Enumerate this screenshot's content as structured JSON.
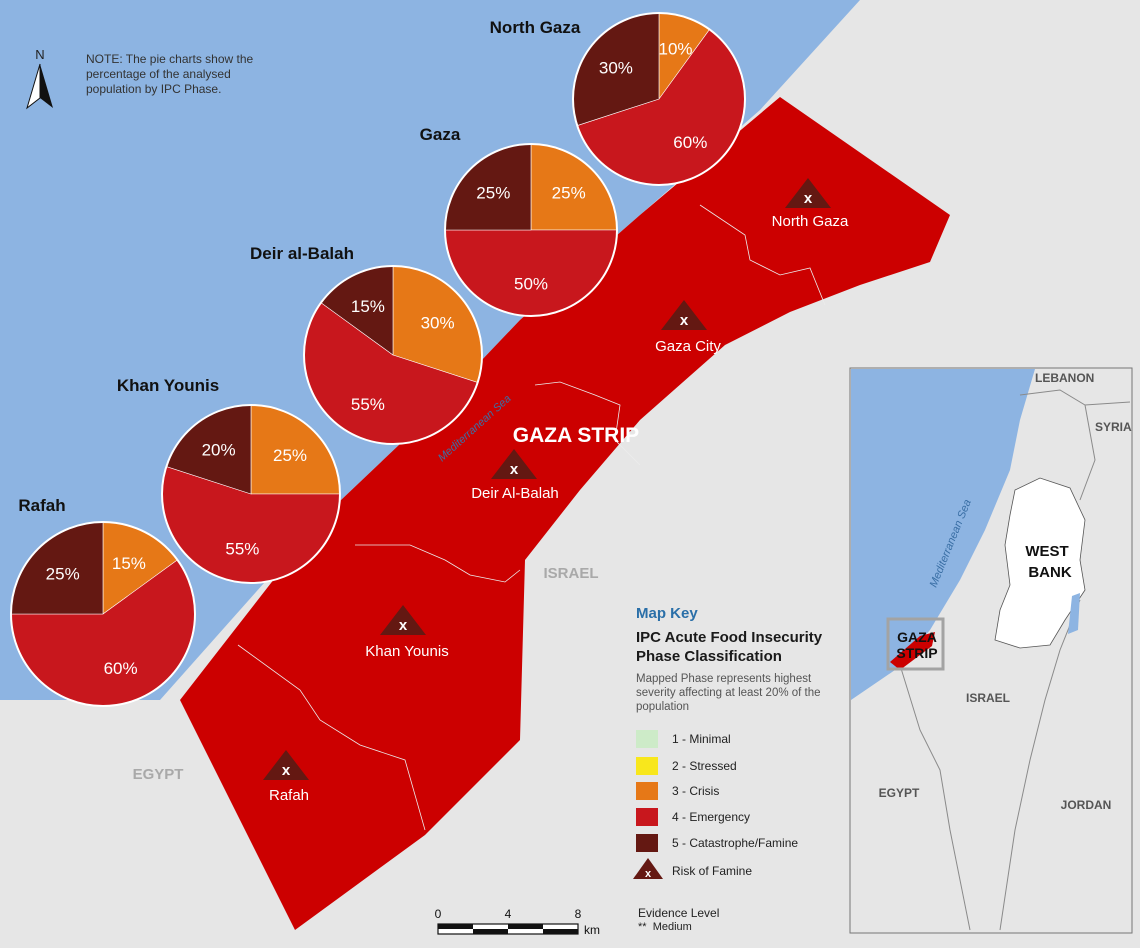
{
  "note": "NOTE: The pie charts show the percentage of the analysed population by IPC Phase.",
  "north_label": "N",
  "colors": {
    "sea": "#8db4e2",
    "land": "#e6e6e6",
    "strip": "#cc0000",
    "minimal": "#cdebc8",
    "stressed": "#f8e71c",
    "crisis": "#e67817",
    "emergency": "#c8171d",
    "catastrophe": "#641812"
  },
  "map_labels": {
    "strip_title": "GAZA STRIP",
    "sea": "Mediterranean Sea",
    "israel": "ISRAEL",
    "egypt": "EGYPT"
  },
  "markers": [
    {
      "label": "North Gaza",
      "symbol": "x"
    },
    {
      "label": "Gaza City",
      "symbol": "x"
    },
    {
      "label": "Deir Al-Balah",
      "symbol": "x"
    },
    {
      "label": "Khan Younis",
      "symbol": "x"
    },
    {
      "label": "Rafah",
      "symbol": "x"
    }
  ],
  "chart_data": [
    {
      "type": "pie",
      "title": "North Gaza",
      "slices": [
        {
          "phase": "3 - Crisis",
          "value": 10,
          "label": "10%"
        },
        {
          "phase": "4 - Emergency",
          "value": 60,
          "label": "60%"
        },
        {
          "phase": "5 - Catastrophe/Famine",
          "value": 30,
          "label": "30%"
        }
      ]
    },
    {
      "type": "pie",
      "title": "Gaza",
      "slices": [
        {
          "phase": "3 - Crisis",
          "value": 25,
          "label": "25%"
        },
        {
          "phase": "4 - Emergency",
          "value": 50,
          "label": "50%"
        },
        {
          "phase": "5 - Catastrophe/Famine",
          "value": 25,
          "label": "25%"
        }
      ]
    },
    {
      "type": "pie",
      "title": "Deir al-Balah",
      "slices": [
        {
          "phase": "3 - Crisis",
          "value": 30,
          "label": "30%"
        },
        {
          "phase": "4 - Emergency",
          "value": 55,
          "label": "55%"
        },
        {
          "phase": "5 - Catastrophe/Famine",
          "value": 15,
          "label": "15%"
        }
      ]
    },
    {
      "type": "pie",
      "title": "Khan Younis",
      "slices": [
        {
          "phase": "3 - Crisis",
          "value": 25,
          "label": "25%"
        },
        {
          "phase": "4 - Emergency",
          "value": 55,
          "label": "55%"
        },
        {
          "phase": "5 - Catastrophe/Famine",
          "value": 20,
          "label": "20%"
        }
      ]
    },
    {
      "type": "pie",
      "title": "Rafah",
      "slices": [
        {
          "phase": "3 - Crisis",
          "value": 15,
          "label": "15%"
        },
        {
          "phase": "4 - Emergency",
          "value": 60,
          "label": "60%"
        },
        {
          "phase": "5 - Catastrophe/Famine",
          "value": 25,
          "label": "25%"
        }
      ]
    }
  ],
  "map_key": {
    "title": "Map Key",
    "subtitle": "IPC Acute Food Insecurity Phase Classification",
    "description": "Mapped Phase represents highest severity affecting at least 20% of the population",
    "items": [
      {
        "label": "1 - Minimal",
        "color": "#cdebc8"
      },
      {
        "label": "2 - Stressed",
        "color": "#f8e71c"
      },
      {
        "label": "3 - Crisis",
        "color": "#e67817"
      },
      {
        "label": "4 - Emergency",
        "color": "#c8171d"
      },
      {
        "label": "5 - Catastrophe/Famine",
        "color": "#641812"
      }
    ],
    "risk_label": "Risk of Famine"
  },
  "scale": {
    "ticks": [
      "0",
      "4",
      "8"
    ],
    "unit": "km"
  },
  "evidence": {
    "title": "Evidence Level",
    "stars": "**",
    "level": "Medium"
  },
  "inset": {
    "lebanon": "LEBANON",
    "syria": "SYRIA",
    "west_bank": "WEST BANK",
    "gaza_strip": "GAZA STRIP",
    "israel": "ISRAEL",
    "egypt": "EGYPT",
    "jordan": "JORDAN",
    "sea": "Mediterranean Sea"
  }
}
